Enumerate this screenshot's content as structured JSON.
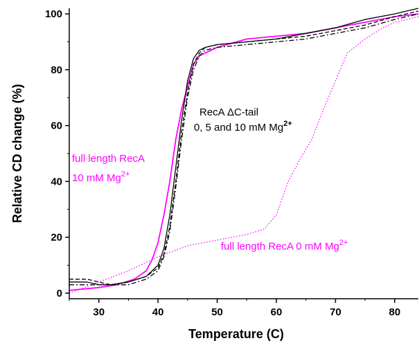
{
  "chart_data": {
    "type": "line",
    "title": "",
    "xlabel": "Temperature (C)",
    "ylabel": "Relative CD change (%)",
    "xlim": [
      25,
      84
    ],
    "ylim": [
      -2,
      102
    ],
    "xticks": [
      30,
      40,
      50,
      60,
      70,
      80
    ],
    "yticks": [
      0,
      20,
      40,
      60,
      80,
      100
    ],
    "grid": false,
    "colors": {
      "magenta": "#ff00ff",
      "black": "#000000"
    },
    "series": [
      {
        "style": "solid",
        "color": "#ff00ff",
        "x": [
          25,
          30,
          33,
          36,
          38,
          39,
          40,
          41,
          42,
          43,
          44,
          45,
          46,
          47,
          48,
          50,
          55,
          60,
          65,
          70,
          75,
          80,
          84
        ],
        "y": [
          1,
          2,
          3,
          5,
          8,
          12,
          18,
          28,
          40,
          55,
          66,
          74,
          82,
          85,
          86,
          88,
          91,
          92,
          93,
          95,
          97,
          99,
          100
        ]
      },
      {
        "style": "solid",
        "color": "#000000",
        "x": [
          25,
          28,
          30,
          32,
          35,
          38,
          40,
          41,
          42,
          43,
          44,
          45,
          46,
          47,
          48,
          50,
          55,
          60,
          65,
          70,
          75,
          80,
          84
        ],
        "y": [
          4,
          4,
          3,
          3,
          4,
          6,
          10,
          16,
          28,
          45,
          62,
          76,
          84,
          87,
          88,
          89,
          90,
          91,
          93,
          95,
          98,
          100,
          102
        ]
      },
      {
        "style": "dashed",
        "color": "#000000",
        "x": [
          25,
          28,
          30,
          32,
          35,
          38,
          40,
          41,
          42,
          43,
          44,
          45,
          46,
          47,
          48,
          50,
          55,
          60,
          65,
          70,
          75,
          80,
          84
        ],
        "y": [
          5,
          5,
          4,
          3,
          4,
          6,
          9,
          14,
          24,
          40,
          58,
          72,
          82,
          86,
          88,
          89,
          90,
          91,
          92,
          94,
          96,
          99,
          101
        ]
      },
      {
        "style": "dashdot",
        "color": "#000000",
        "x": [
          25,
          28,
          30,
          32,
          35,
          38,
          40,
          41,
          42,
          43,
          44,
          45,
          46,
          47,
          48,
          50,
          55,
          60,
          65,
          70,
          75,
          80,
          84
        ],
        "y": [
          3,
          3,
          3,
          3,
          3,
          5,
          8,
          13,
          22,
          38,
          55,
          70,
          80,
          85,
          87,
          88,
          89,
          90,
          91,
          93,
          95,
          98,
          100
        ]
      },
      {
        "style": "dotted",
        "color": "#ff00ff",
        "x": [
          25,
          30,
          35,
          40,
          45,
          50,
          55,
          58,
          60,
          62,
          64,
          66,
          68,
          70,
          72,
          75,
          78,
          80,
          84
        ],
        "y": [
          0,
          4,
          8,
          13,
          17,
          19,
          21,
          23,
          28,
          40,
          48,
          55,
          66,
          76,
          86,
          91,
          95,
          97,
          99
        ]
      }
    ],
    "annotations": [
      {
        "lines": [
          "RecA ΔC-tail",
          "0, 5 and 10 mM Mg"
        ],
        "superscript": "2+",
        "color": "#000000"
      },
      {
        "lines": [
          "full length RecA",
          "10 mM Mg"
        ],
        "superscript": "2+",
        "color": "#ff00ff"
      },
      {
        "lines": [
          "full length RecA 0 mM Mg"
        ],
        "superscript": "2+",
        "color": "#ff00ff"
      }
    ]
  }
}
